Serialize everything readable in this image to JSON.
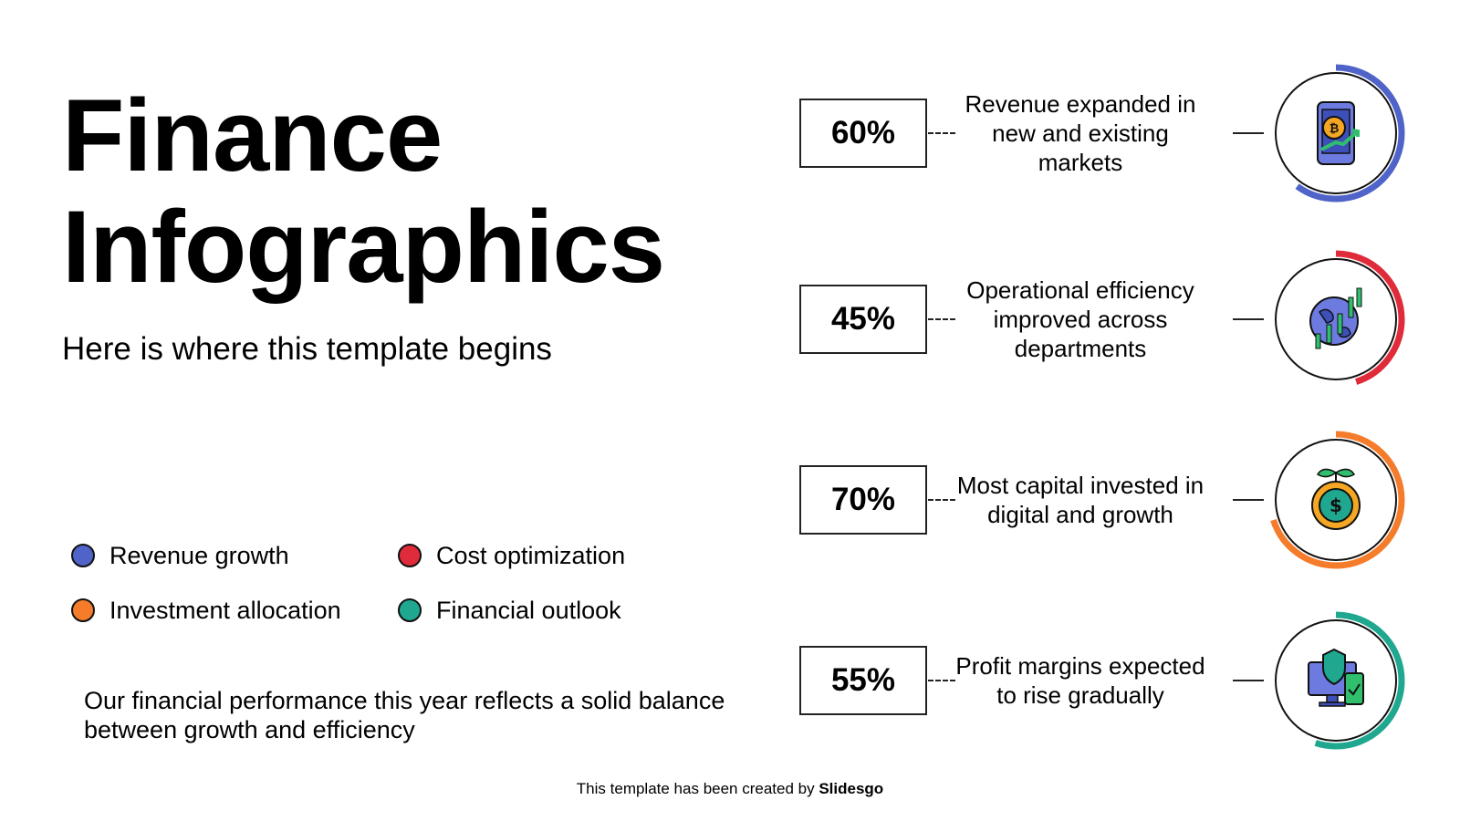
{
  "title": {
    "line1": "Finance",
    "line2": "Infographics"
  },
  "subtitle": "Here is where this template begins",
  "legend": [
    {
      "label": "Revenue growth",
      "color": "#4f63c9"
    },
    {
      "label": "Cost optimization",
      "color": "#e02b3a"
    },
    {
      "label": "Investment allocation",
      "color": "#f47c2a"
    },
    {
      "label": "Financial outlook",
      "color": "#1fa88f"
    }
  ],
  "summary": "Our financial performance this year reflects a solid balance between growth and efficiency",
  "rows": [
    {
      "percent_label": "60%",
      "text": "Revenue expanded in new and existing markets",
      "color": "#4f63c9",
      "arc_fraction": 0.6,
      "icon": "phone-bitcoin-growth-icon"
    },
    {
      "percent_label": "45%",
      "text": "Operational efficiency improved across departments",
      "color": "#e02b3a",
      "arc_fraction": 0.45,
      "icon": "globe-candlestick-chart-icon"
    },
    {
      "percent_label": "70%",
      "text": "Most capital invested in digital and growth",
      "color": "#f47c2a",
      "arc_fraction": 0.7,
      "icon": "dollar-coin-plant-icon"
    },
    {
      "percent_label": "55%",
      "text": "Profit margins expected to rise gradually",
      "color": "#1fa88f",
      "arc_fraction": 0.55,
      "icon": "shield-monitor-phone-icon"
    }
  ],
  "footer": {
    "prefix": "This template has been created by ",
    "brand": "Slidesgo"
  }
}
